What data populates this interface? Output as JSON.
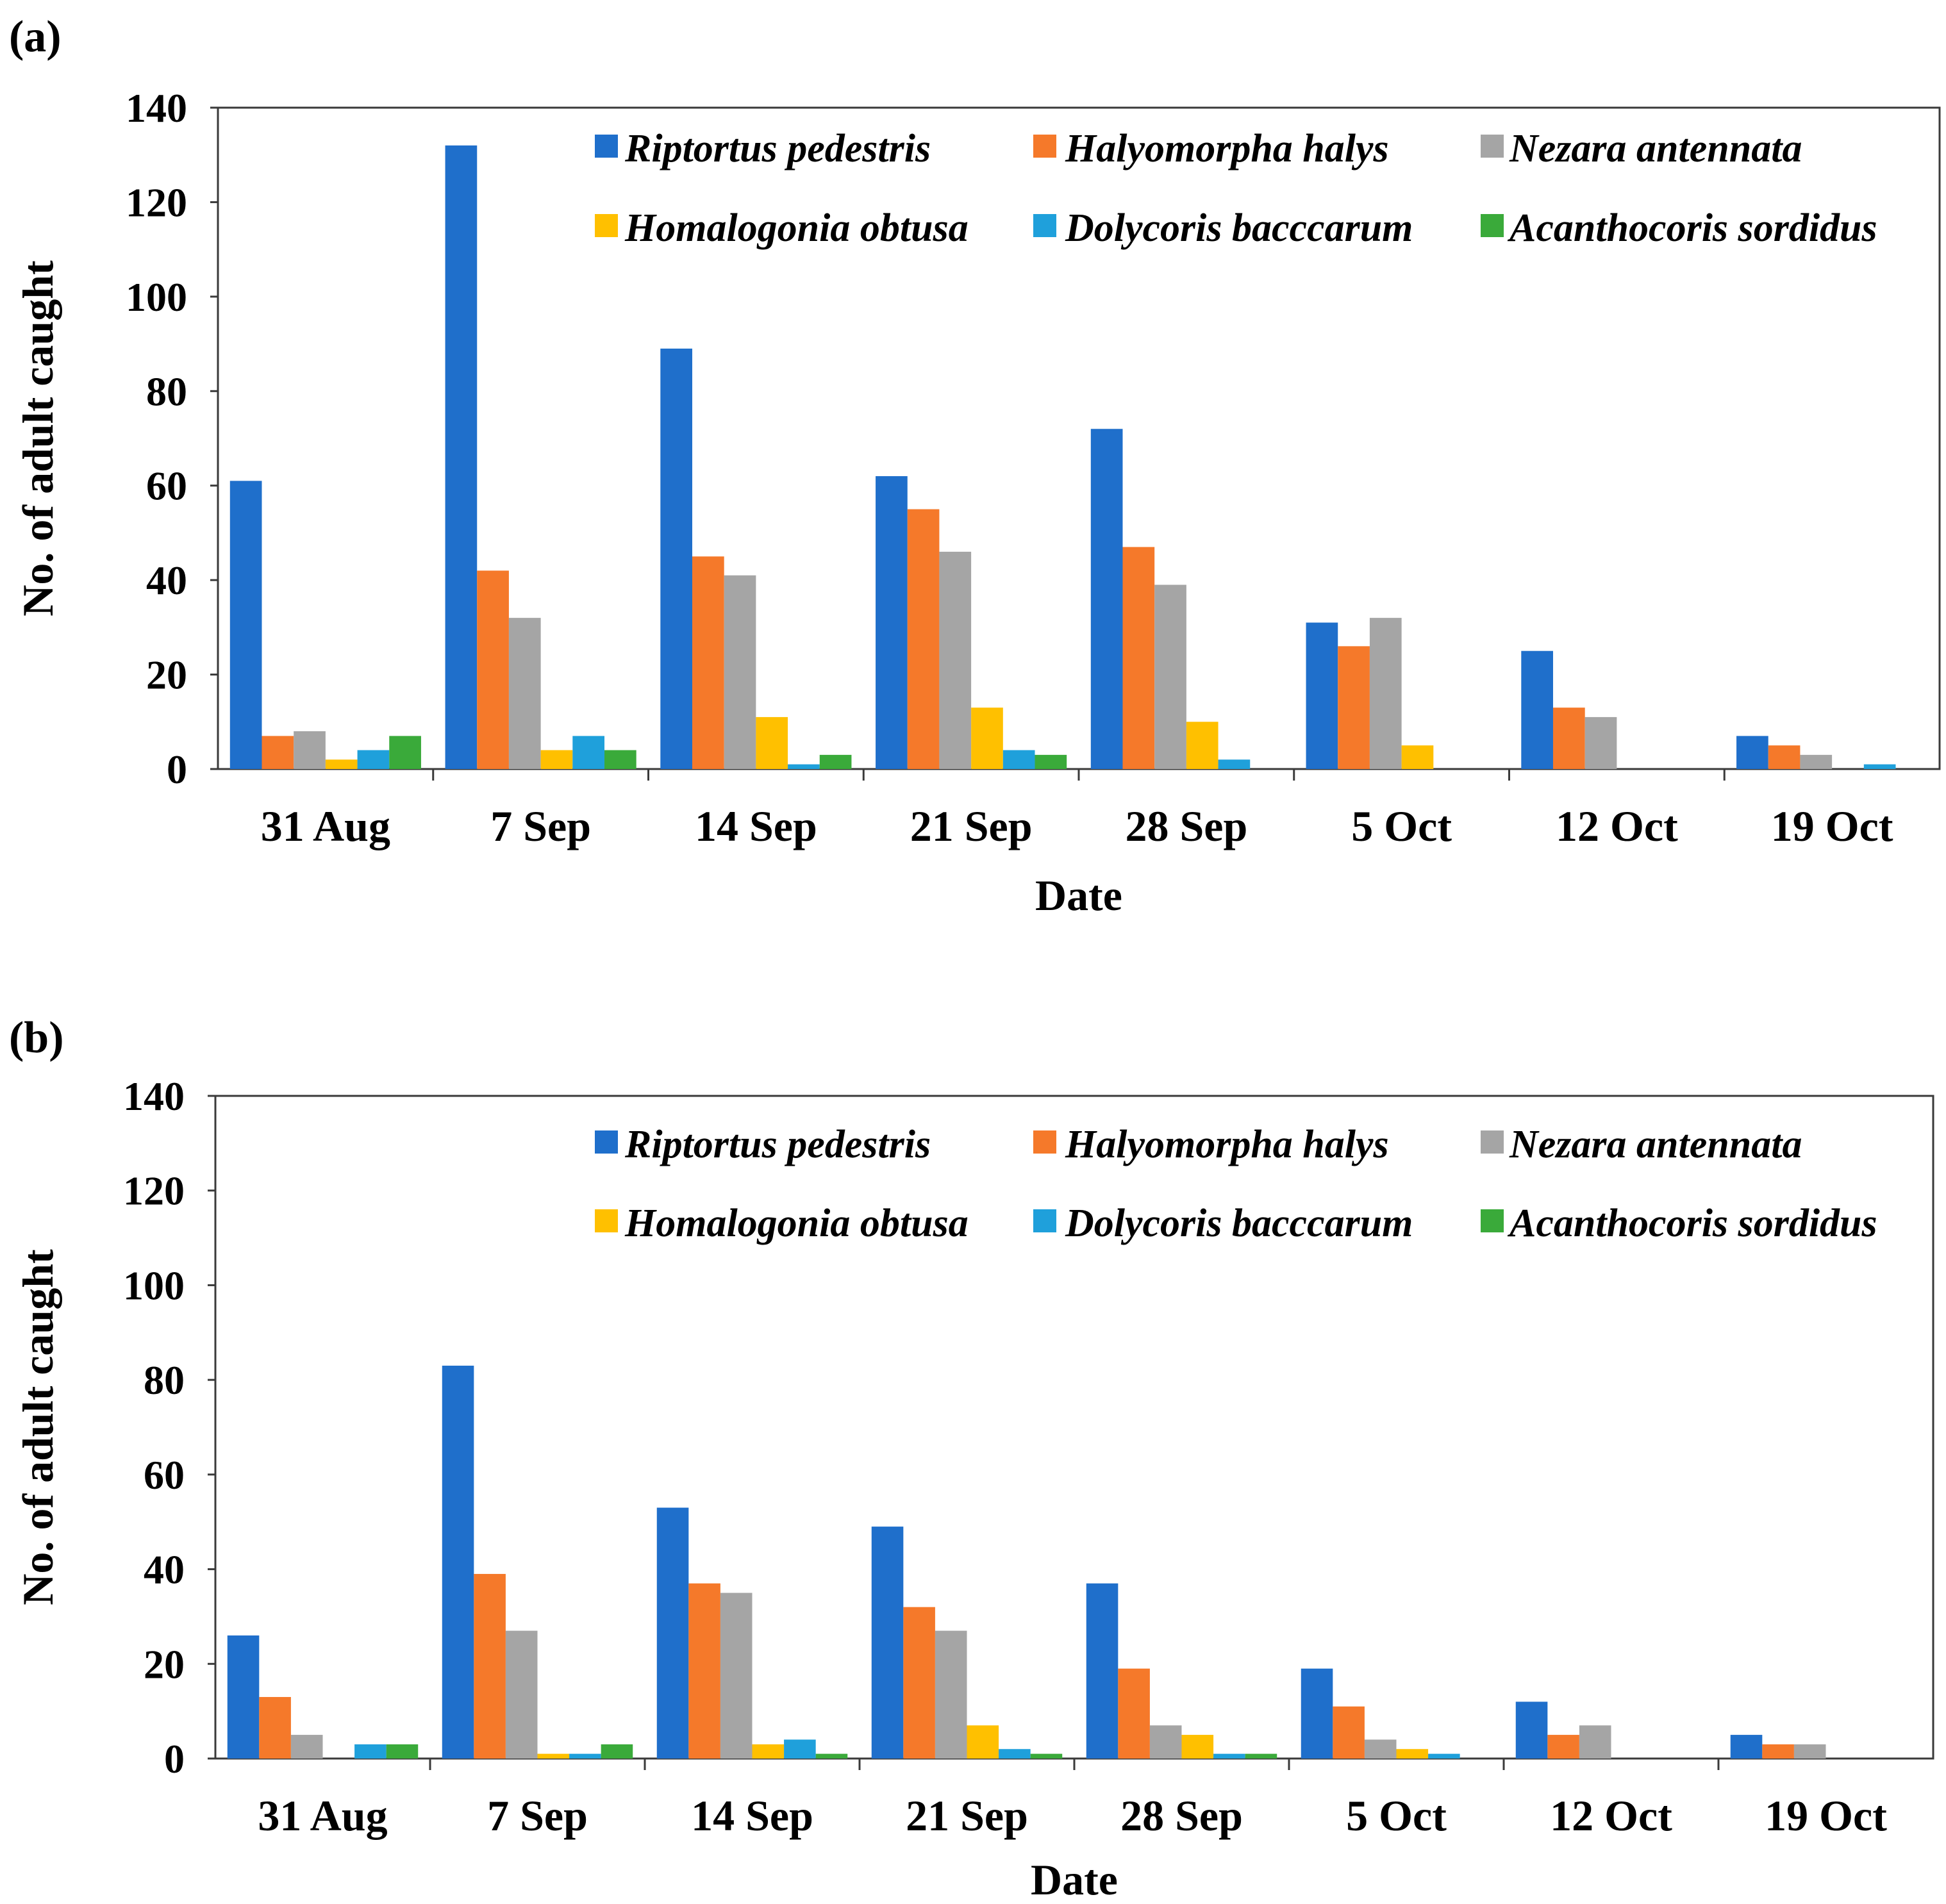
{
  "colors": {
    "Riptortus pedestris": "#1F6FCB",
    "Halyomorpha halys": "#F5792A",
    "Nezara antennata": "#A5A5A5",
    "Homalogonia obtusa": "#FFC000",
    "Dolycoris bacccarum": "#1FA0DB",
    "Acanthocoris sordidus": "#3AAA3A"
  },
  "chart_data": [
    {
      "panel": "(a)",
      "type": "bar",
      "title": "",
      "xlabel": "Date",
      "ylabel": "No. of adult caught",
      "ylim": [
        0,
        140
      ],
      "yticks": [
        0,
        20,
        40,
        60,
        80,
        100,
        120,
        140
      ],
      "grid": false,
      "legend_position": "top-right",
      "categories": [
        "31 Aug",
        "7 Sep",
        "14 Sep",
        "21 Sep",
        "28 Sep",
        "5 Oct",
        "12 Oct",
        "19 Oct"
      ],
      "series": [
        {
          "name": "Riptortus pedestris",
          "values": [
            61,
            132,
            89,
            62,
            72,
            31,
            25,
            7
          ]
        },
        {
          "name": "Halyomorpha halys",
          "values": [
            7,
            42,
            45,
            55,
            47,
            26,
            13,
            5
          ]
        },
        {
          "name": "Nezara antennata",
          "values": [
            8,
            32,
            41,
            46,
            39,
            32,
            11,
            3
          ]
        },
        {
          "name": "Homalogonia obtusa",
          "values": [
            2,
            4,
            11,
            13,
            10,
            5,
            0,
            0
          ]
        },
        {
          "name": "Dolycoris bacccarum",
          "values": [
            4,
            7,
            1,
            4,
            2,
            0,
            0,
            1
          ]
        },
        {
          "name": "Acanthocoris sordidus",
          "values": [
            7,
            4,
            3,
            3,
            0,
            0,
            0,
            0
          ]
        }
      ]
    },
    {
      "panel": "(b)",
      "type": "bar",
      "title": "",
      "xlabel": "Date",
      "ylabel": "No. of adult caught",
      "ylim": [
        0,
        140
      ],
      "yticks": [
        0,
        20,
        40,
        60,
        80,
        100,
        120,
        140
      ],
      "grid": false,
      "legend_position": "top-right",
      "categories": [
        "31 Aug",
        "7 Sep",
        "14 Sep",
        "21 Sep",
        "28 Sep",
        "5 Oct",
        "12 Oct",
        "19 Oct"
      ],
      "series": [
        {
          "name": "Riptortus pedestris",
          "values": [
            26,
            83,
            53,
            49,
            37,
            19,
            12,
            5
          ]
        },
        {
          "name": "Halyomorpha halys",
          "values": [
            13,
            39,
            37,
            32,
            19,
            11,
            5,
            3
          ]
        },
        {
          "name": "Nezara antennata",
          "values": [
            5,
            27,
            35,
            27,
            7,
            4,
            7,
            3
          ]
        },
        {
          "name": "Homalogonia obtusa",
          "values": [
            0,
            1,
            3,
            7,
            5,
            2,
            0,
            0
          ]
        },
        {
          "name": "Dolycoris bacccarum",
          "values": [
            3,
            1,
            4,
            2,
            1,
            1,
            0,
            0
          ]
        },
        {
          "name": "Acanthocoris sordidus",
          "values": [
            3,
            3,
            1,
            1,
            1,
            0,
            0,
            0
          ]
        }
      ]
    }
  ]
}
